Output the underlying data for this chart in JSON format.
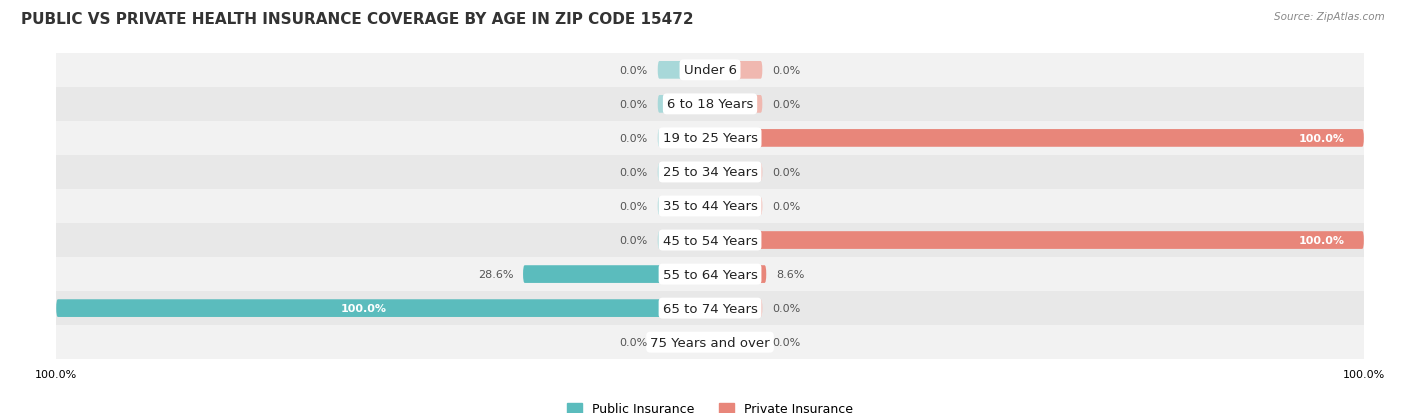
{
  "title": "PUBLIC VS PRIVATE HEALTH INSURANCE COVERAGE BY AGE IN ZIP CODE 15472",
  "source": "Source: ZipAtlas.com",
  "categories": [
    "Under 6",
    "6 to 18 Years",
    "19 to 25 Years",
    "25 to 34 Years",
    "35 to 44 Years",
    "45 to 54 Years",
    "55 to 64 Years",
    "65 to 74 Years",
    "75 Years and over"
  ],
  "public_values": [
    0.0,
    0.0,
    0.0,
    0.0,
    0.0,
    0.0,
    28.6,
    100.0,
    0.0
  ],
  "private_values": [
    0.0,
    0.0,
    100.0,
    0.0,
    0.0,
    100.0,
    8.6,
    0.0,
    0.0
  ],
  "public_color": "#5bbcbd",
  "private_color": "#e8867a",
  "public_color_light": "#a8d8d9",
  "private_color_light": "#f0b8b0",
  "row_bg_odd": "#f2f2f2",
  "row_bg_even": "#e8e8e8",
  "axis_limit": 100.0,
  "stub_size": 8.0,
  "label_fontsize": 8.0,
  "cat_fontsize": 9.5,
  "title_fontsize": 11,
  "legend_fontsize": 9,
  "bar_height": 0.52
}
